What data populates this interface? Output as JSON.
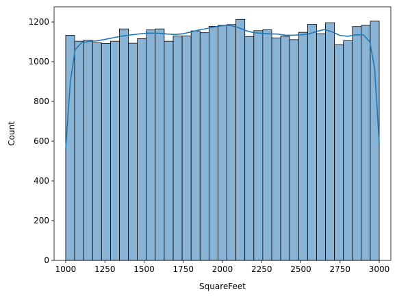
{
  "chart_data": {
    "type": "bar",
    "subtype": "histogram-with-kde",
    "title": "",
    "xlabel": "SquareFeet",
    "ylabel": "Count",
    "xlim": [
      926,
      3074
    ],
    "ylim": [
      0,
      1276
    ],
    "xticks": [
      1000,
      1250,
      1500,
      1750,
      2000,
      2250,
      2500,
      2750,
      3000
    ],
    "yticks": [
      0,
      200,
      400,
      600,
      800,
      1000,
      1200
    ],
    "grid": false,
    "legend": "none",
    "bin_start": 1000,
    "bin_end": 3000,
    "bar_color": "#8AB4D6",
    "bar_edge_color": "#000000",
    "kde_color": "#1F77B4",
    "counts": [
      1133,
      1103,
      1108,
      1095,
      1092,
      1103,
      1165,
      1093,
      1116,
      1160,
      1165,
      1103,
      1130,
      1130,
      1155,
      1146,
      1178,
      1183,
      1187,
      1213,
      1127,
      1156,
      1161,
      1120,
      1128,
      1111,
      1148,
      1188,
      1141,
      1196,
      1086,
      1105,
      1177,
      1183,
      1204
    ],
    "kde": {
      "x": [
        1000,
        1030,
        1060,
        1100,
        1150,
        1200,
        1250,
        1300,
        1350,
        1400,
        1450,
        1500,
        1550,
        1600,
        1650,
        1700,
        1750,
        1800,
        1850,
        1900,
        1950,
        2000,
        2050,
        2100,
        2150,
        2200,
        2250,
        2300,
        2350,
        2400,
        2450,
        2500,
        2550,
        2600,
        2650,
        2700,
        2750,
        2800,
        2850,
        2900,
        2940,
        2970,
        3000
      ],
      "y": [
        560,
        900,
        1060,
        1095,
        1102,
        1105,
        1112,
        1120,
        1128,
        1133,
        1138,
        1142,
        1144,
        1143,
        1139,
        1137,
        1141,
        1150,
        1160,
        1167,
        1175,
        1181,
        1182,
        1172,
        1156,
        1146,
        1143,
        1140,
        1139,
        1133,
        1133,
        1135,
        1140,
        1152,
        1162,
        1150,
        1132,
        1128,
        1135,
        1135,
        1100,
        970,
        590
      ]
    }
  }
}
